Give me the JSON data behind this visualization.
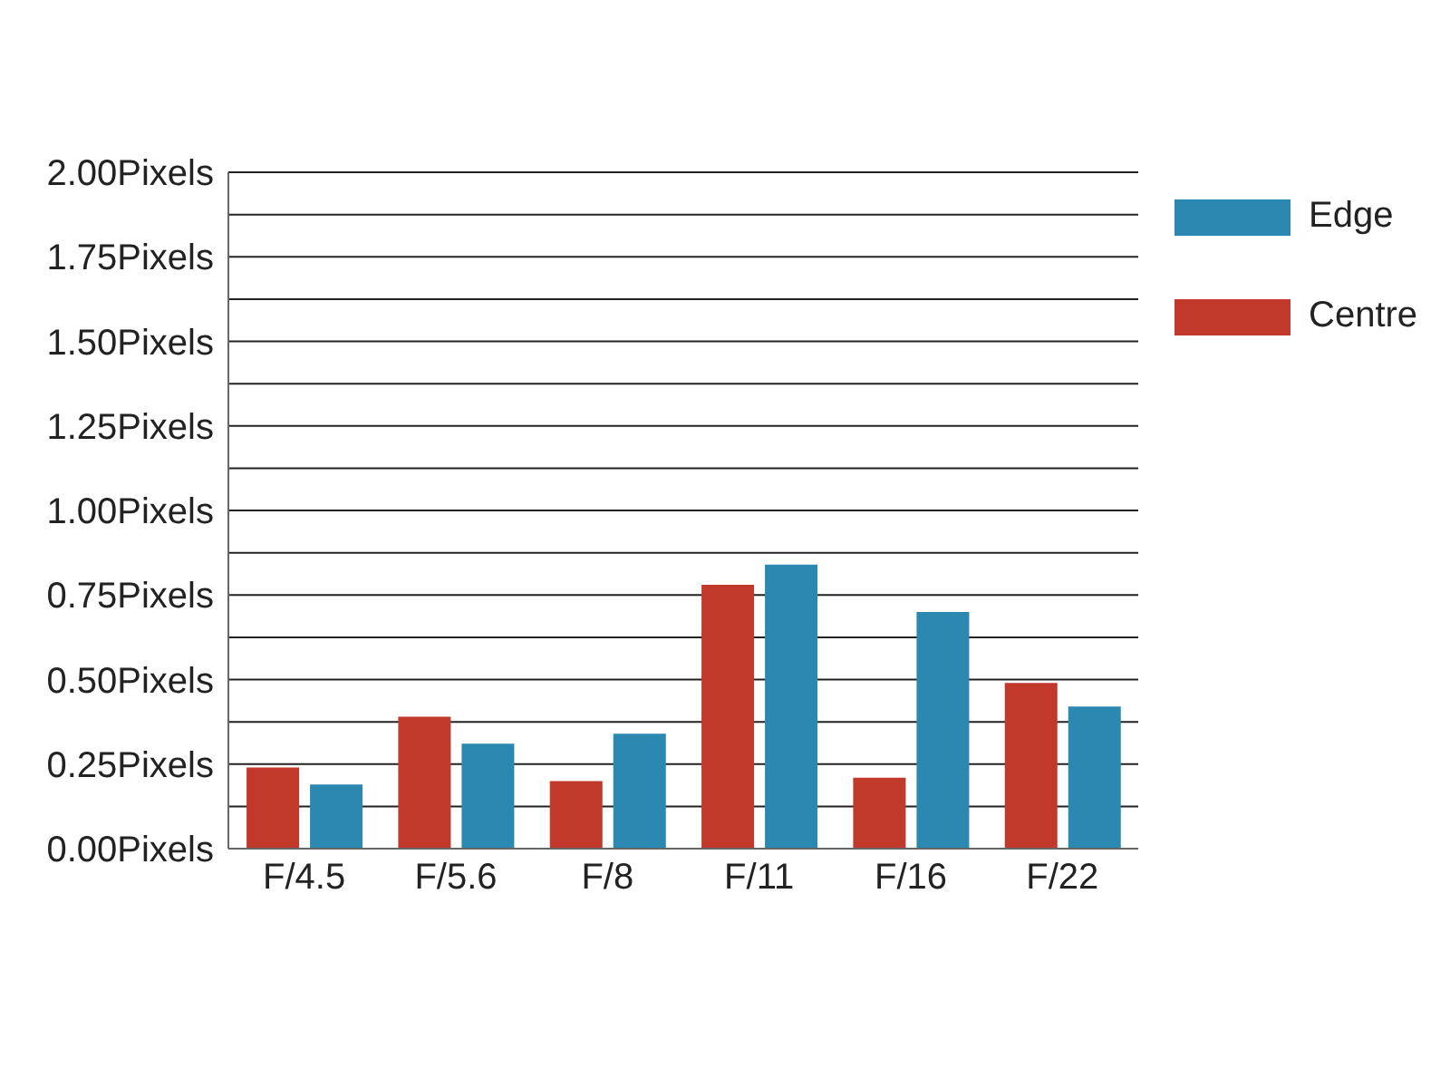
{
  "chart_data": {
    "type": "bar",
    "categories": [
      "F/4.5",
      "F/5.6",
      "F/8",
      "F/11",
      "F/16",
      "F/22"
    ],
    "series": [
      {
        "name": "Centre",
        "color": "#c0392b",
        "values": [
          0.24,
          0.39,
          0.2,
          0.78,
          0.21,
          0.49
        ]
      },
      {
        "name": "Edge",
        "color": "#2b88b0",
        "values": [
          0.19,
          0.31,
          0.34,
          0.84,
          0.7,
          0.42
        ]
      }
    ],
    "ylim": [
      0,
      2
    ],
    "yticks": [
      {
        "value": 0,
        "label": "0.00Pixels"
      },
      {
        "value": 0.125,
        "label": null
      },
      {
        "value": 0.25,
        "label": "0.25Pixels"
      },
      {
        "value": 0.375,
        "label": null
      },
      {
        "value": 0.5,
        "label": "0.50Pixels"
      },
      {
        "value": 0.625,
        "label": null
      },
      {
        "value": 0.75,
        "label": "0.75Pixels"
      },
      {
        "value": 0.875,
        "label": null
      },
      {
        "value": 1,
        "label": "1.00Pixels"
      },
      {
        "value": 1.125,
        "label": null
      },
      {
        "value": 1.25,
        "label": "1.25Pixels"
      },
      {
        "value": 1.375,
        "label": null
      },
      {
        "value": 1.5,
        "label": "1.50Pixels"
      },
      {
        "value": 1.625,
        "label": null
      },
      {
        "value": 1.75,
        "label": "1.75Pixels"
      },
      {
        "value": 1.875,
        "label": null
      },
      {
        "value": 2,
        "label": "2.00Pixels"
      }
    ],
    "grid": "y",
    "legend": "top right"
  }
}
